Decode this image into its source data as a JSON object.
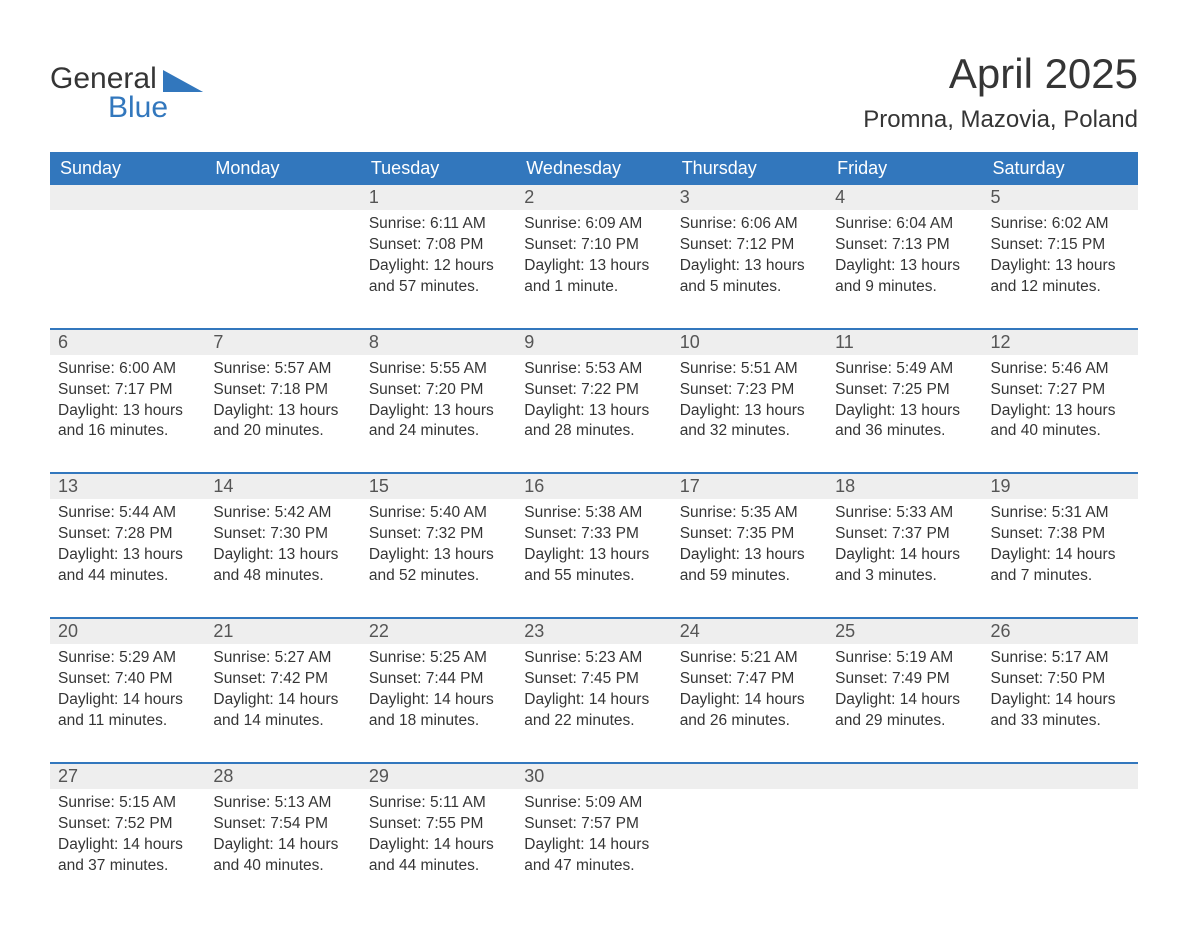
{
  "brand": {
    "part1": "General",
    "part2": "Blue",
    "logo_color": "#3277bd",
    "text_color": "#353535"
  },
  "title": "April 2025",
  "location": "Promna, Mazovia, Poland",
  "colors": {
    "header_bg": "#3277bd",
    "header_text": "#ffffff",
    "daynum_bg": "#eeeeee",
    "row_divider": "#3277bd",
    "body_text": "#353535",
    "page_bg": "#ffffff"
  },
  "fonts": {
    "title_size_pt": 32,
    "location_size_pt": 18,
    "header_size_pt": 14,
    "cell_size_pt": 12
  },
  "layout": {
    "columns": 7,
    "rows": 5,
    "first_day_column_index": 2
  },
  "day_headers": [
    "Sunday",
    "Monday",
    "Tuesday",
    "Wednesday",
    "Thursday",
    "Friday",
    "Saturday"
  ],
  "weeks": [
    [
      null,
      null,
      {
        "n": "1",
        "sunrise": "Sunrise: 6:11 AM",
        "sunset": "Sunset: 7:08 PM",
        "daylight": "Daylight: 12 hours and 57 minutes."
      },
      {
        "n": "2",
        "sunrise": "Sunrise: 6:09 AM",
        "sunset": "Sunset: 7:10 PM",
        "daylight": "Daylight: 13 hours and 1 minute."
      },
      {
        "n": "3",
        "sunrise": "Sunrise: 6:06 AM",
        "sunset": "Sunset: 7:12 PM",
        "daylight": "Daylight: 13 hours and 5 minutes."
      },
      {
        "n": "4",
        "sunrise": "Sunrise: 6:04 AM",
        "sunset": "Sunset: 7:13 PM",
        "daylight": "Daylight: 13 hours and 9 minutes."
      },
      {
        "n": "5",
        "sunrise": "Sunrise: 6:02 AM",
        "sunset": "Sunset: 7:15 PM",
        "daylight": "Daylight: 13 hours and 12 minutes."
      }
    ],
    [
      {
        "n": "6",
        "sunrise": "Sunrise: 6:00 AM",
        "sunset": "Sunset: 7:17 PM",
        "daylight": "Daylight: 13 hours and 16 minutes."
      },
      {
        "n": "7",
        "sunrise": "Sunrise: 5:57 AM",
        "sunset": "Sunset: 7:18 PM",
        "daylight": "Daylight: 13 hours and 20 minutes."
      },
      {
        "n": "8",
        "sunrise": "Sunrise: 5:55 AM",
        "sunset": "Sunset: 7:20 PM",
        "daylight": "Daylight: 13 hours and 24 minutes."
      },
      {
        "n": "9",
        "sunrise": "Sunrise: 5:53 AM",
        "sunset": "Sunset: 7:22 PM",
        "daylight": "Daylight: 13 hours and 28 minutes."
      },
      {
        "n": "10",
        "sunrise": "Sunrise: 5:51 AM",
        "sunset": "Sunset: 7:23 PM",
        "daylight": "Daylight: 13 hours and 32 minutes."
      },
      {
        "n": "11",
        "sunrise": "Sunrise: 5:49 AM",
        "sunset": "Sunset: 7:25 PM",
        "daylight": "Daylight: 13 hours and 36 minutes."
      },
      {
        "n": "12",
        "sunrise": "Sunrise: 5:46 AM",
        "sunset": "Sunset: 7:27 PM",
        "daylight": "Daylight: 13 hours and 40 minutes."
      }
    ],
    [
      {
        "n": "13",
        "sunrise": "Sunrise: 5:44 AM",
        "sunset": "Sunset: 7:28 PM",
        "daylight": "Daylight: 13 hours and 44 minutes."
      },
      {
        "n": "14",
        "sunrise": "Sunrise: 5:42 AM",
        "sunset": "Sunset: 7:30 PM",
        "daylight": "Daylight: 13 hours and 48 minutes."
      },
      {
        "n": "15",
        "sunrise": "Sunrise: 5:40 AM",
        "sunset": "Sunset: 7:32 PM",
        "daylight": "Daylight: 13 hours and 52 minutes."
      },
      {
        "n": "16",
        "sunrise": "Sunrise: 5:38 AM",
        "sunset": "Sunset: 7:33 PM",
        "daylight": "Daylight: 13 hours and 55 minutes."
      },
      {
        "n": "17",
        "sunrise": "Sunrise: 5:35 AM",
        "sunset": "Sunset: 7:35 PM",
        "daylight": "Daylight: 13 hours and 59 minutes."
      },
      {
        "n": "18",
        "sunrise": "Sunrise: 5:33 AM",
        "sunset": "Sunset: 7:37 PM",
        "daylight": "Daylight: 14 hours and 3 minutes."
      },
      {
        "n": "19",
        "sunrise": "Sunrise: 5:31 AM",
        "sunset": "Sunset: 7:38 PM",
        "daylight": "Daylight: 14 hours and 7 minutes."
      }
    ],
    [
      {
        "n": "20",
        "sunrise": "Sunrise: 5:29 AM",
        "sunset": "Sunset: 7:40 PM",
        "daylight": "Daylight: 14 hours and 11 minutes."
      },
      {
        "n": "21",
        "sunrise": "Sunrise: 5:27 AM",
        "sunset": "Sunset: 7:42 PM",
        "daylight": "Daylight: 14 hours and 14 minutes."
      },
      {
        "n": "22",
        "sunrise": "Sunrise: 5:25 AM",
        "sunset": "Sunset: 7:44 PM",
        "daylight": "Daylight: 14 hours and 18 minutes."
      },
      {
        "n": "23",
        "sunrise": "Sunrise: 5:23 AM",
        "sunset": "Sunset: 7:45 PM",
        "daylight": "Daylight: 14 hours and 22 minutes."
      },
      {
        "n": "24",
        "sunrise": "Sunrise: 5:21 AM",
        "sunset": "Sunset: 7:47 PM",
        "daylight": "Daylight: 14 hours and 26 minutes."
      },
      {
        "n": "25",
        "sunrise": "Sunrise: 5:19 AM",
        "sunset": "Sunset: 7:49 PM",
        "daylight": "Daylight: 14 hours and 29 minutes."
      },
      {
        "n": "26",
        "sunrise": "Sunrise: 5:17 AM",
        "sunset": "Sunset: 7:50 PM",
        "daylight": "Daylight: 14 hours and 33 minutes."
      }
    ],
    [
      {
        "n": "27",
        "sunrise": "Sunrise: 5:15 AM",
        "sunset": "Sunset: 7:52 PM",
        "daylight": "Daylight: 14 hours and 37 minutes."
      },
      {
        "n": "28",
        "sunrise": "Sunrise: 5:13 AM",
        "sunset": "Sunset: 7:54 PM",
        "daylight": "Daylight: 14 hours and 40 minutes."
      },
      {
        "n": "29",
        "sunrise": "Sunrise: 5:11 AM",
        "sunset": "Sunset: 7:55 PM",
        "daylight": "Daylight: 14 hours and 44 minutes."
      },
      {
        "n": "30",
        "sunrise": "Sunrise: 5:09 AM",
        "sunset": "Sunset: 7:57 PM",
        "daylight": "Daylight: 14 hours and 47 minutes."
      },
      null,
      null,
      null
    ]
  ]
}
